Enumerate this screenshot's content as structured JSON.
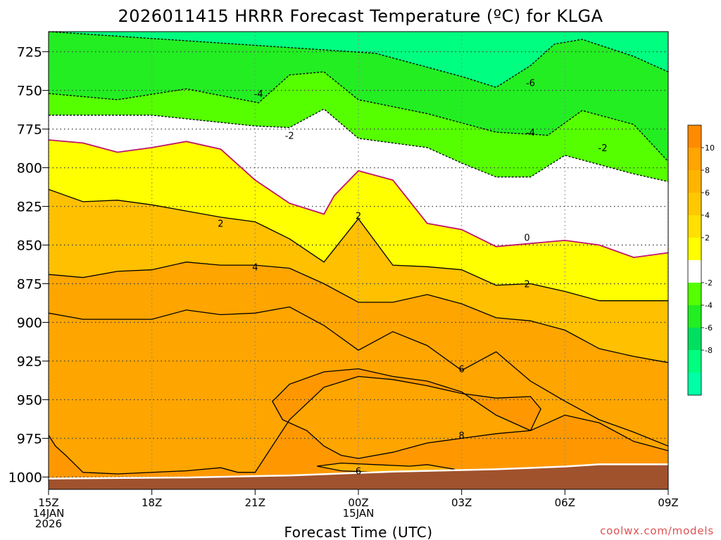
{
  "chart_data": {
    "type": "heatmap",
    "title": "2026011415 HRRR Forecast Temperature (ºC) for KLGA",
    "xlabel": "Forecast Time (UTC)",
    "ylabel": "",
    "watermark": "coolwx.com/models",
    "x_range_hours": [
      0,
      18
    ],
    "y_range_hPa": [
      1008,
      712
    ],
    "x_ticks": [
      {
        "h": 0,
        "lines": [
          "15Z",
          "14JAN",
          "2026"
        ]
      },
      {
        "h": 3,
        "lines": [
          "18Z"
        ]
      },
      {
        "h": 6,
        "lines": [
          "21Z"
        ]
      },
      {
        "h": 9,
        "lines": [
          "00Z",
          "15JAN"
        ]
      },
      {
        "h": 12,
        "lines": [
          "03Z"
        ]
      },
      {
        "h": 15,
        "lines": [
          "06Z"
        ]
      },
      {
        "h": 18,
        "lines": [
          "09Z"
        ]
      }
    ],
    "y_ticks": [
      725,
      750,
      775,
      800,
      825,
      850,
      875,
      900,
      925,
      950,
      975,
      1000
    ],
    "colorbar": {
      "labels": [
        "10",
        "8",
        "6",
        "4",
        "2",
        "-2",
        "-4",
        "-6",
        "-8"
      ],
      "colors": [
        "#ff8c00",
        "#ffa500",
        "#ffb400",
        "#ffc800",
        "#ffe000",
        "#ffff00",
        "#ffffff",
        "#55ff00",
        "#22ee22",
        "#00e060",
        "#00ff80",
        "#00ffa8"
      ]
    },
    "surface": {
      "hours": [
        0,
        4,
        7,
        10,
        13,
        15,
        16,
        18
      ],
      "pressure": [
        1001,
        1000.3,
        999,
        996.5,
        995,
        993.2,
        991.8,
        991.8
      ],
      "color": "#a0522d"
    },
    "fills": [
      {
        "level": "below 8",
        "color": "#ffa500",
        "contour": "c8"
      },
      {
        "level": "below 4",
        "color": "#ffc000",
        "contour": "c4"
      },
      {
        "level": "below 2",
        "color": "#ffff00",
        "contour": "c2"
      },
      {
        "level": "below 0",
        "color": "#ffffff",
        "contour": "c0"
      },
      {
        "level": "below -2",
        "color": "#55ff00",
        "contour": "cm2"
      },
      {
        "level": "below -4",
        "color": "#22ee22",
        "contour": "cm4"
      },
      {
        "level": "below -6",
        "color": "#00ff80",
        "contour": "cm6"
      }
    ],
    "contours": {
      "cm6": {
        "value": -6,
        "hours": [
          0,
          9.5,
          12,
          13,
          14,
          14.7,
          15.5,
          17,
          18
        ],
        "pressure": [
          712,
          726,
          741,
          748,
          734,
          720,
          717,
          728,
          738
        ]
      },
      "cm4": {
        "value": -4,
        "hours": [
          0,
          2,
          4,
          6.1,
          7,
          8,
          9,
          11,
          13,
          14.5,
          15.5,
          17,
          18
        ],
        "pressure": [
          752,
          756,
          749,
          758,
          740,
          738,
          756,
          765,
          777,
          779,
          763,
          772,
          796
        ]
      },
      "cm2": {
        "value": -2,
        "hours": [
          0,
          3,
          6,
          7,
          8,
          9,
          11,
          12,
          13,
          14,
          15,
          17,
          18
        ],
        "pressure": [
          766,
          766,
          773,
          774,
          762,
          781,
          787,
          797,
          806,
          806,
          792,
          804,
          809
        ]
      },
      "c0": {
        "value": 0,
        "hours": [
          0,
          1,
          2,
          3,
          4,
          5,
          6,
          7,
          8,
          8.3,
          9,
          10,
          11,
          12,
          13,
          14,
          15,
          16,
          17,
          18
        ],
        "pressure": [
          782,
          784,
          790,
          787,
          783,
          788,
          808,
          823,
          830,
          818,
          802,
          808,
          836,
          840,
          851,
          849,
          847,
          850,
          858,
          855
        ]
      },
      "c2": {
        "value": 2,
        "hours": [
          0,
          1,
          2,
          3,
          4,
          5,
          6,
          7,
          8,
          9,
          10,
          11,
          12,
          13,
          14,
          15,
          16,
          17,
          18
        ],
        "pressure": [
          814,
          822,
          821,
          824,
          828,
          832,
          835,
          846,
          861,
          833,
          863,
          864,
          866,
          876,
          875,
          880,
          886,
          886,
          886
        ]
      },
      "c4": {
        "value": 4,
        "hours": [
          0,
          1,
          2,
          3,
          4,
          5,
          6,
          7,
          8,
          9,
          10,
          11,
          12,
          13,
          14,
          15,
          16,
          17,
          18
        ],
        "pressure": [
          869,
          871,
          867,
          866,
          861,
          863,
          863,
          865,
          875,
          887,
          887,
          882,
          888,
          897,
          899,
          905,
          917,
          922,
          926
        ]
      },
      "c6": {
        "value": 6,
        "hours": [
          0,
          1,
          2,
          3,
          4,
          5,
          6,
          7,
          8,
          9,
          10,
          11,
          12,
          13,
          14,
          15,
          16,
          17,
          18
        ],
        "pressure": [
          894,
          898,
          898,
          898,
          892,
          895,
          894,
          890,
          902,
          918,
          906,
          915,
          931,
          919,
          938,
          951,
          963,
          971,
          980
        ]
      },
      "c8": {
        "value": 8,
        "hours": [
          0,
          0.2,
          0.5,
          1,
          2,
          4,
          5,
          5.5,
          6,
          7,
          8,
          9,
          10,
          11,
          12,
          13,
          14,
          14.3,
          14,
          13,
          12,
          11,
          10,
          9,
          8.5,
          8,
          7.5,
          6.8,
          6.5,
          6.6,
          7,
          8,
          9,
          10,
          11,
          12,
          13,
          14,
          15,
          16,
          17,
          18
        ],
        "pressure": [
          973,
          980,
          986,
          997,
          998,
          996,
          994,
          997,
          997,
          963,
          942,
          935,
          937,
          941,
          946,
          949,
          948,
          956,
          970,
          972,
          975,
          978,
          984,
          988,
          986,
          980,
          970,
          963,
          951,
          949,
          940,
          932,
          930,
          935,
          938,
          945,
          960,
          970,
          960,
          965,
          977,
          983
        ]
      },
      "c6b": {
        "value": 6,
        "hours": [
          7.8,
          8.5,
          9.5,
          10.5,
          11,
          11.8,
          11.2,
          10.5,
          9.5,
          8.5,
          7.8
        ],
        "pressure": [
          993,
          991,
          992,
          993,
          992,
          995,
          997,
          997,
          997,
          996,
          993
        ]
      }
    },
    "contour_labels": [
      {
        "text": "-6",
        "h": 14,
        "p": 745
      },
      {
        "text": "-4",
        "h": 6.1,
        "p": 752
      },
      {
        "text": "-4",
        "h": 14,
        "p": 777
      },
      {
        "text": "-2",
        "h": 7,
        "p": 779
      },
      {
        "text": "-2",
        "h": 16.1,
        "p": 787
      },
      {
        "text": "0",
        "h": 13.9,
        "p": 845
      },
      {
        "text": "2",
        "h": 5,
        "p": 836
      },
      {
        "text": "2",
        "h": 9,
        "p": 831
      },
      {
        "text": "2",
        "h": 13.9,
        "p": 875
      },
      {
        "text": "4",
        "h": 6,
        "p": 864
      },
      {
        "text": "6",
        "h": 12,
        "p": 930
      },
      {
        "text": "6",
        "h": 9,
        "p": 996
      },
      {
        "text": "8",
        "h": 12,
        "p": 973
      }
    ]
  }
}
